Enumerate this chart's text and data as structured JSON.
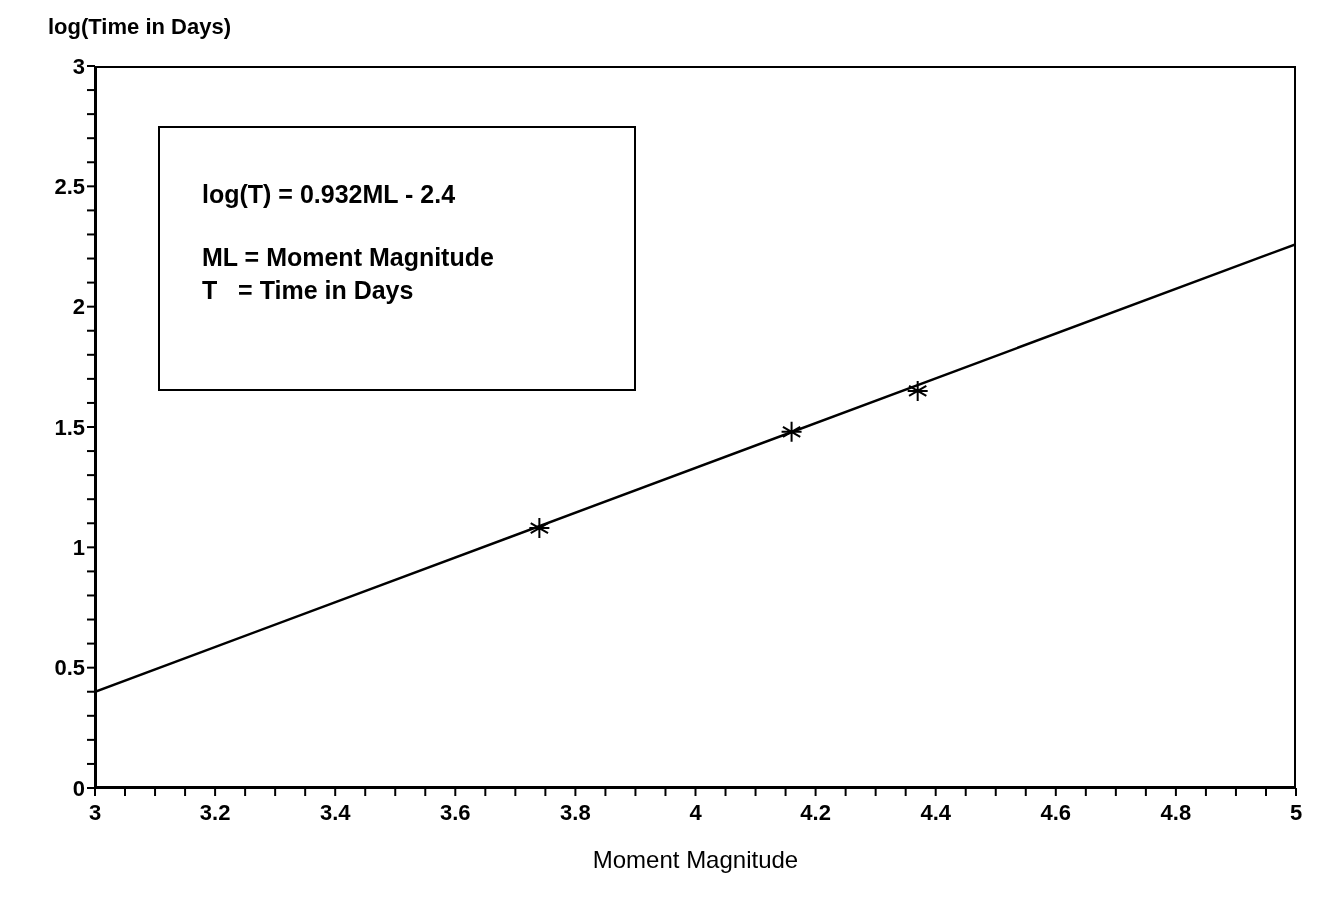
{
  "chart_data": {
    "type": "scatter",
    "xlabel": "Moment Magnitude",
    "ylabel": "log(Time in Days)",
    "annotations": [
      "log(T) = 0.932ML - 2.4",
      "ML = Moment Magnitude",
      "T   = Time in Days"
    ],
    "xlim": [
      3,
      5
    ],
    "ylim": [
      0,
      3
    ],
    "xticks": [
      3,
      {
        "value": 3.05,
        "label": null
      },
      {
        "value": 3.1,
        "label": null
      },
      {
        "value": 3.15,
        "label": null
      },
      3.2,
      {
        "value": 3.25,
        "label": null
      },
      {
        "value": 3.3,
        "label": null
      },
      {
        "value": 3.35,
        "label": null
      },
      3.4,
      {
        "value": 3.45,
        "label": null
      },
      {
        "value": 3.5,
        "label": null
      },
      {
        "value": 3.55,
        "label": null
      },
      3.6,
      {
        "value": 3.65,
        "label": null
      },
      {
        "value": 3.7,
        "label": null
      },
      {
        "value": 3.75,
        "label": null
      },
      3.8,
      {
        "value": 3.85,
        "label": null
      },
      {
        "value": 3.9,
        "label": null
      },
      {
        "value": 3.95,
        "label": null
      },
      4,
      {
        "value": 4.05,
        "label": null
      },
      {
        "value": 4.1,
        "label": null
      },
      {
        "value": 4.15,
        "label": null
      },
      4.2,
      {
        "value": 4.25,
        "label": null
      },
      {
        "value": 4.3,
        "label": null
      },
      {
        "value": 4.35,
        "label": null
      },
      4.4,
      {
        "value": 4.45,
        "label": null
      },
      {
        "value": 4.5,
        "label": null
      },
      {
        "value": 4.55,
        "label": null
      },
      4.6,
      {
        "value": 4.65,
        "label": null
      },
      {
        "value": 4.7,
        "label": null
      },
      {
        "value": 4.75,
        "label": null
      },
      4.8,
      {
        "value": 4.85,
        "label": null
      },
      {
        "value": 4.9,
        "label": null
      },
      {
        "value": 4.95,
        "label": null
      },
      5
    ],
    "yticks": [
      0,
      {
        "value": 0.1,
        "label": null
      },
      {
        "value": 0.2,
        "label": null
      },
      {
        "value": 0.3,
        "label": null
      },
      {
        "value": 0.4,
        "label": null
      },
      0.5,
      {
        "value": 0.6,
        "label": null
      },
      {
        "value": 0.7,
        "label": null
      },
      {
        "value": 0.8,
        "label": null
      },
      {
        "value": 0.9,
        "label": null
      },
      1,
      {
        "value": 1.1,
        "label": null
      },
      {
        "value": 1.2,
        "label": null
      },
      {
        "value": 1.3,
        "label": null
      },
      {
        "value": 1.4,
        "label": null
      },
      1.5,
      {
        "value": 1.6,
        "label": null
      },
      {
        "value": 1.7,
        "label": null
      },
      {
        "value": 1.8,
        "label": null
      },
      {
        "value": 1.9,
        "label": null
      },
      2,
      {
        "value": 2.1,
        "label": null
      },
      {
        "value": 2.2,
        "label": null
      },
      {
        "value": 2.3,
        "label": null
      },
      {
        "value": 2.4,
        "label": null
      },
      2.5,
      {
        "value": 2.6,
        "label": null
      },
      {
        "value": 2.7,
        "label": null
      },
      {
        "value": 2.8,
        "label": null
      },
      {
        "value": 2.9,
        "label": null
      },
      3
    ],
    "series": [
      {
        "color": "#000000",
        "marker": "cross",
        "x": [
          3.74,
          4.16,
          4.37
        ],
        "values": [
          1.08,
          1.48,
          1.65
        ]
      },
      {
        "type": "line",
        "color": "#000000",
        "marker": "none",
        "line_style": "solid",
        "x": [
          3,
          5
        ],
        "values": [
          0.4,
          2.26
        ]
      }
    ]
  }
}
